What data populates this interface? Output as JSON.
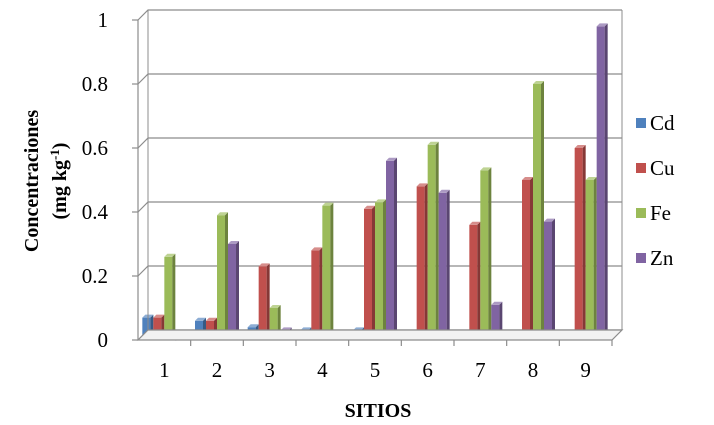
{
  "chart_data": {
    "type": "bar",
    "title": "",
    "xlabel": "SITIOS",
    "ylabel_line1": "Concentraciones",
    "ylabel_line2_prefix": "(mg kg",
    "ylabel_line2_sup": "-1",
    "ylabel_line2_suffix": ")",
    "ylim": [
      0,
      1
    ],
    "yticks": [
      "0",
      "0.2",
      "0.4",
      "0.6",
      "0.8",
      "1"
    ],
    "ytick_values": [
      0,
      0.2,
      0.4,
      0.6,
      0.8,
      1
    ],
    "grid": true,
    "legend_position": "right",
    "categories": [
      "1",
      "2",
      "3",
      "4",
      "5",
      "6",
      "7",
      "8",
      "9"
    ],
    "series": [
      {
        "name": "Cd",
        "color": "#4f81bd",
        "values": [
          0.07,
          0.06,
          0.04,
          0.03,
          0.03,
          0.01,
          0.01,
          0.02,
          0.02
        ]
      },
      {
        "name": "Cu",
        "color": "#c0504d",
        "values": [
          0.07,
          0.06,
          0.23,
          0.28,
          0.41,
          0.48,
          0.36,
          0.5,
          0.6
        ]
      },
      {
        "name": "Fe",
        "color": "#9bbb59",
        "values": [
          0.26,
          0.39,
          0.1,
          0.42,
          0.43,
          0.61,
          0.53,
          0.8,
          0.5
        ]
      },
      {
        "name": "Zn",
        "color": "#8064a2",
        "values": [
          0.0,
          0.3,
          0.03,
          0.02,
          0.56,
          0.46,
          0.11,
          0.37,
          0.98
        ]
      }
    ]
  }
}
